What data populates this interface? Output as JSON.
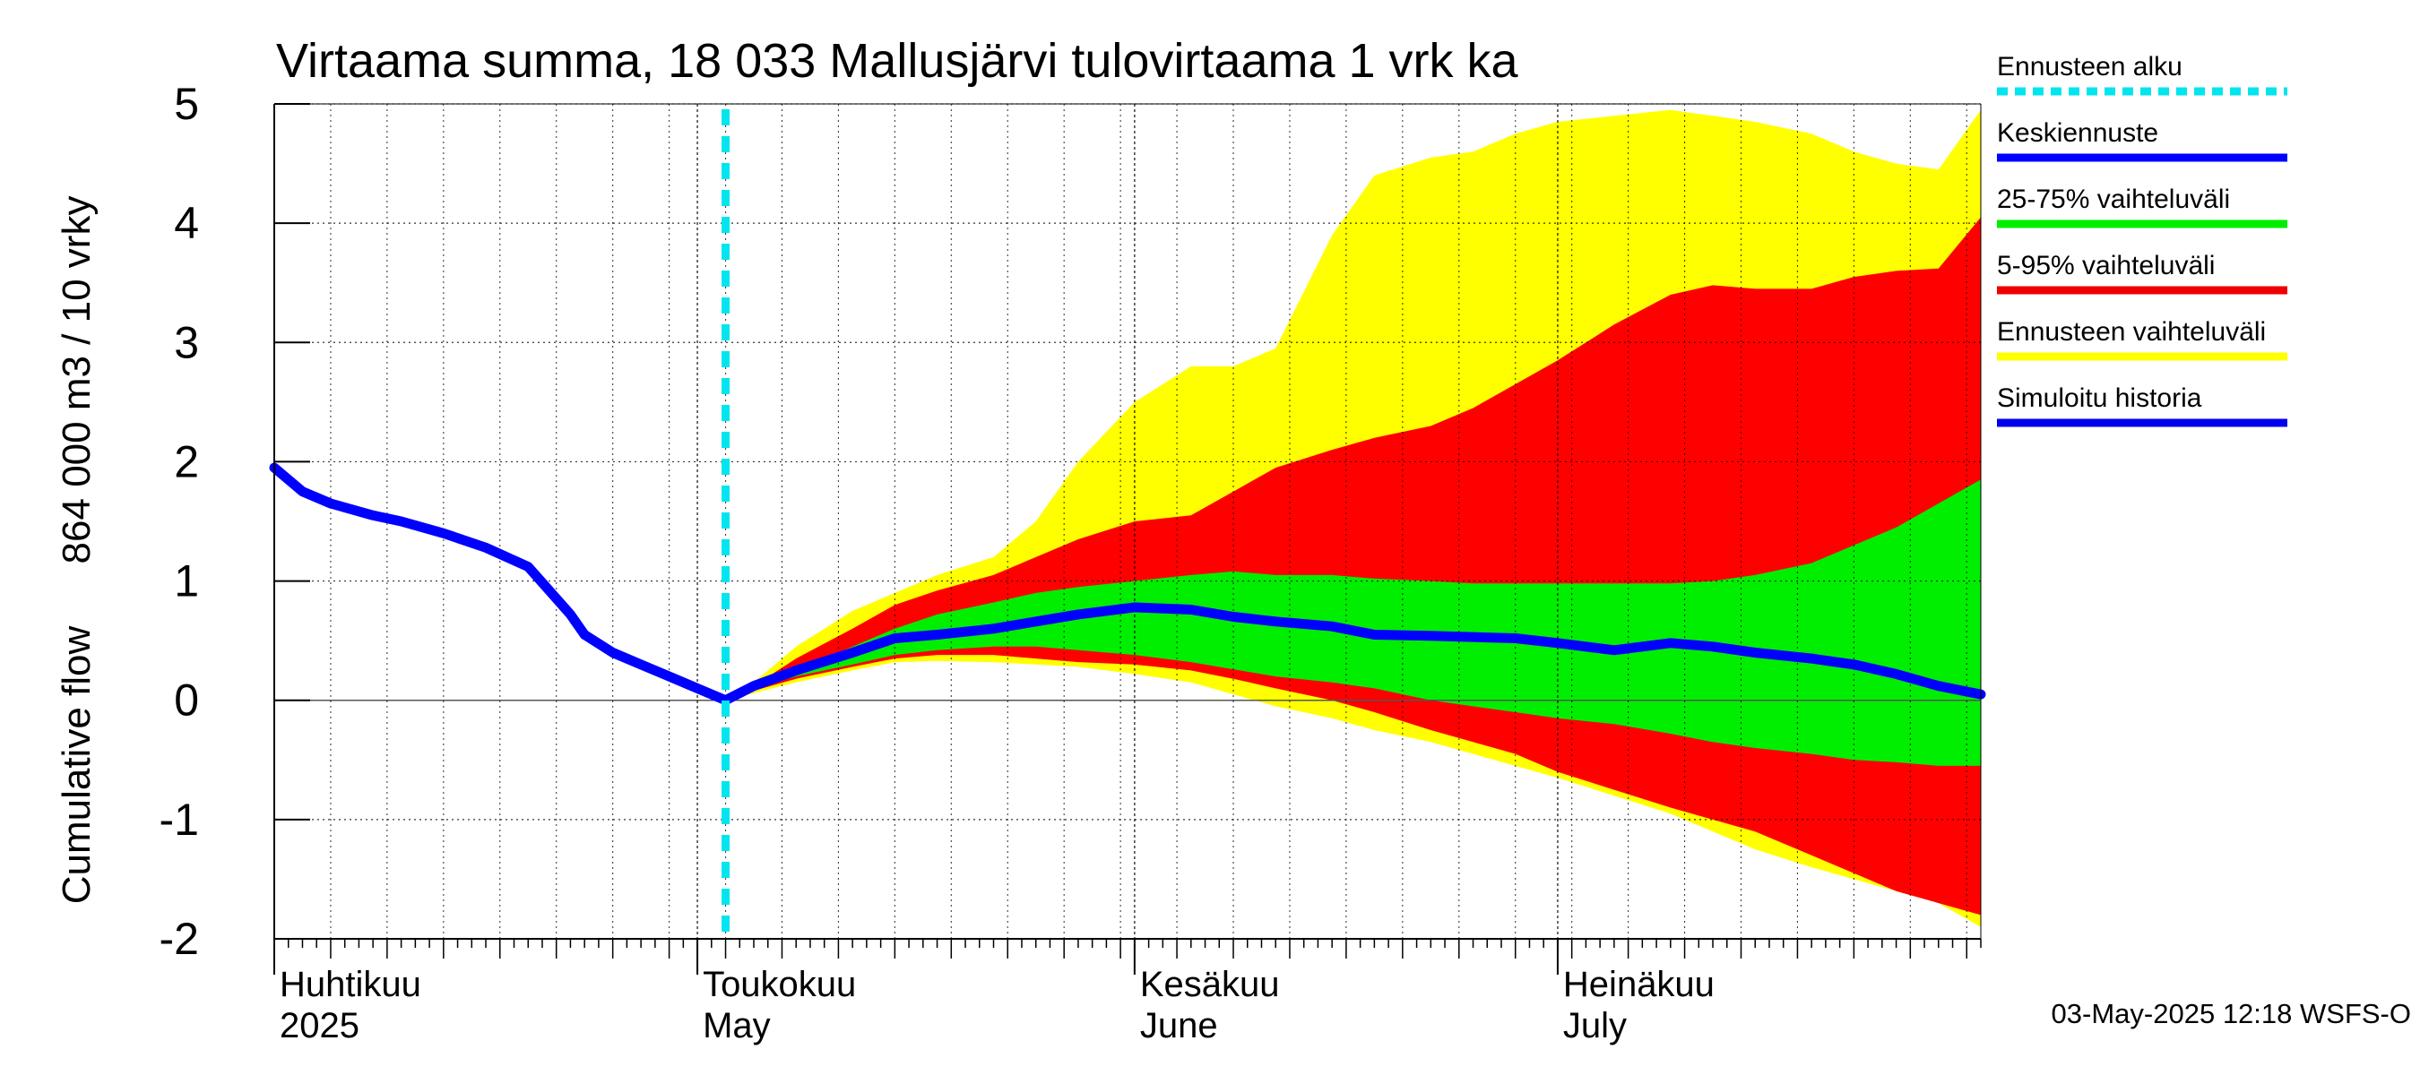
{
  "chart_data": {
    "type": "area",
    "title": "Virtaama summa, 18 033 Mallusjärvi tulovirtaama 1 vrk ka",
    "ylabel_main": "Cumulative flow",
    "ylabel_units": "864 000 m3 / 10 vrky",
    "ylim": [
      -2,
      5
    ],
    "yticks": [
      "-2",
      "-1",
      "0",
      "1",
      "2",
      "3",
      "4",
      "5"
    ],
    "grid": true,
    "x_start": "2025-04-01",
    "x_end": "2025-07-31",
    "forecast_start": "2025-05-03",
    "month_labels": [
      {
        "fi": "Huhtikuu",
        "en": "2025",
        "date": "2025-04-01"
      },
      {
        "fi": "Toukokuu",
        "en": "May",
        "date": "2025-05-01"
      },
      {
        "fi": "Kesäkuu",
        "en": "June",
        "date": "2025-06-01"
      },
      {
        "fi": "Heinäkuu",
        "en": "July",
        "date": "2025-07-01"
      }
    ],
    "history": {
      "x": [
        "2025-04-01",
        "2025-04-03",
        "2025-04-05",
        "2025-04-08",
        "2025-04-10",
        "2025-04-13",
        "2025-04-16",
        "2025-04-19",
        "2025-04-22",
        "2025-04-23",
        "2025-04-25",
        "2025-04-27",
        "2025-04-29",
        "2025-05-01",
        "2025-05-03"
      ],
      "y": [
        1.95,
        1.75,
        1.65,
        1.55,
        1.5,
        1.4,
        1.28,
        1.12,
        0.72,
        0.55,
        0.4,
        0.3,
        0.2,
        0.1,
        0.0
      ]
    },
    "forecast": {
      "x": [
        "2025-05-03",
        "2025-05-05",
        "2025-05-08",
        "2025-05-12",
        "2025-05-15",
        "2025-05-18",
        "2025-05-22",
        "2025-05-25",
        "2025-05-28",
        "2025-06-01",
        "2025-06-05",
        "2025-06-08",
        "2025-06-11",
        "2025-06-15",
        "2025-06-18",
        "2025-06-22",
        "2025-06-25",
        "2025-06-28",
        "2025-07-01",
        "2025-07-05",
        "2025-07-09",
        "2025-07-12",
        "2025-07-15",
        "2025-07-19",
        "2025-07-22",
        "2025-07-25",
        "2025-07-28",
        "2025-07-31"
      ],
      "ens_max": [
        0.0,
        0.15,
        0.45,
        0.75,
        0.9,
        1.05,
        1.2,
        1.5,
        2.0,
        2.5,
        2.8,
        2.8,
        2.95,
        3.9,
        4.4,
        4.55,
        4.6,
        4.75,
        4.85,
        4.9,
        4.95,
        4.9,
        4.85,
        4.75,
        4.6,
        4.5,
        4.45,
        4.95
      ],
      "p95": [
        0.0,
        0.12,
        0.35,
        0.6,
        0.8,
        0.92,
        1.05,
        1.2,
        1.35,
        1.5,
        1.55,
        1.75,
        1.95,
        2.1,
        2.2,
        2.3,
        2.45,
        2.65,
        2.85,
        3.15,
        3.4,
        3.48,
        3.45,
        3.45,
        3.55,
        3.6,
        3.62,
        4.05
      ],
      "p75": [
        0.0,
        0.1,
        0.25,
        0.45,
        0.6,
        0.72,
        0.82,
        0.9,
        0.95,
        1.0,
        1.05,
        1.08,
        1.05,
        1.05,
        1.02,
        1.0,
        0.98,
        0.98,
        0.98,
        0.98,
        0.98,
        1.0,
        1.05,
        1.15,
        1.3,
        1.45,
        1.65,
        1.85
      ],
      "median": [
        0.0,
        0.12,
        0.25,
        0.4,
        0.52,
        0.55,
        0.6,
        0.66,
        0.72,
        0.78,
        0.76,
        0.7,
        0.66,
        0.62,
        0.55,
        0.54,
        0.53,
        0.52,
        0.48,
        0.42,
        0.48,
        0.45,
        0.4,
        0.35,
        0.3,
        0.22,
        0.12,
        0.05
      ],
      "p25": [
        0.0,
        0.1,
        0.2,
        0.3,
        0.38,
        0.42,
        0.45,
        0.45,
        0.42,
        0.38,
        0.32,
        0.26,
        0.2,
        0.15,
        0.1,
        0.0,
        -0.05,
        -0.1,
        -0.15,
        -0.2,
        -0.28,
        -0.35,
        -0.4,
        -0.45,
        -0.5,
        -0.52,
        -0.55,
        -0.55
      ],
      "p5": [
        0.0,
        0.08,
        0.18,
        0.28,
        0.35,
        0.38,
        0.38,
        0.35,
        0.32,
        0.3,
        0.25,
        0.18,
        0.1,
        0.0,
        -0.1,
        -0.25,
        -0.35,
        -0.45,
        -0.6,
        -0.75,
        -0.9,
        -1.0,
        -1.1,
        -1.3,
        -1.45,
        -1.6,
        -1.7,
        -1.8
      ],
      "ens_min": [
        0.0,
        0.06,
        0.15,
        0.25,
        0.32,
        0.33,
        0.32,
        0.3,
        0.28,
        0.22,
        0.15,
        0.05,
        -0.05,
        -0.15,
        -0.25,
        -0.35,
        -0.45,
        -0.55,
        -0.65,
        -0.8,
        -0.95,
        -1.1,
        -1.25,
        -1.4,
        -1.5,
        -1.6,
        -1.7,
        -1.9
      ]
    },
    "legend_placement": "right",
    "legend": [
      {
        "label": "Ennusteen alku",
        "color": "#00e5ee",
        "style": "dashed"
      },
      {
        "label": "Keskiennuste",
        "color": "#0000ff",
        "style": "solid"
      },
      {
        "label": "25-75% vaihteluväli",
        "color": "#00ee00",
        "style": "solid"
      },
      {
        "label": "5-95% vaihteluväli",
        "color": "#ee0000",
        "style": "solid"
      },
      {
        "label": "Ennusteen vaihteluväli",
        "color": "#ffff00",
        "style": "solid"
      },
      {
        "label": "Simuloitu historia",
        "color": "#0000ee",
        "style": "solid"
      }
    ],
    "colors": {
      "ensemble": "#ffff00",
      "p5_95": "#ff0000",
      "p25_75": "#00ee00",
      "median": "#0000ff",
      "forecast_start": "#00e5ee"
    }
  },
  "footer": "03-May-2025 12:18 WSFS-O"
}
